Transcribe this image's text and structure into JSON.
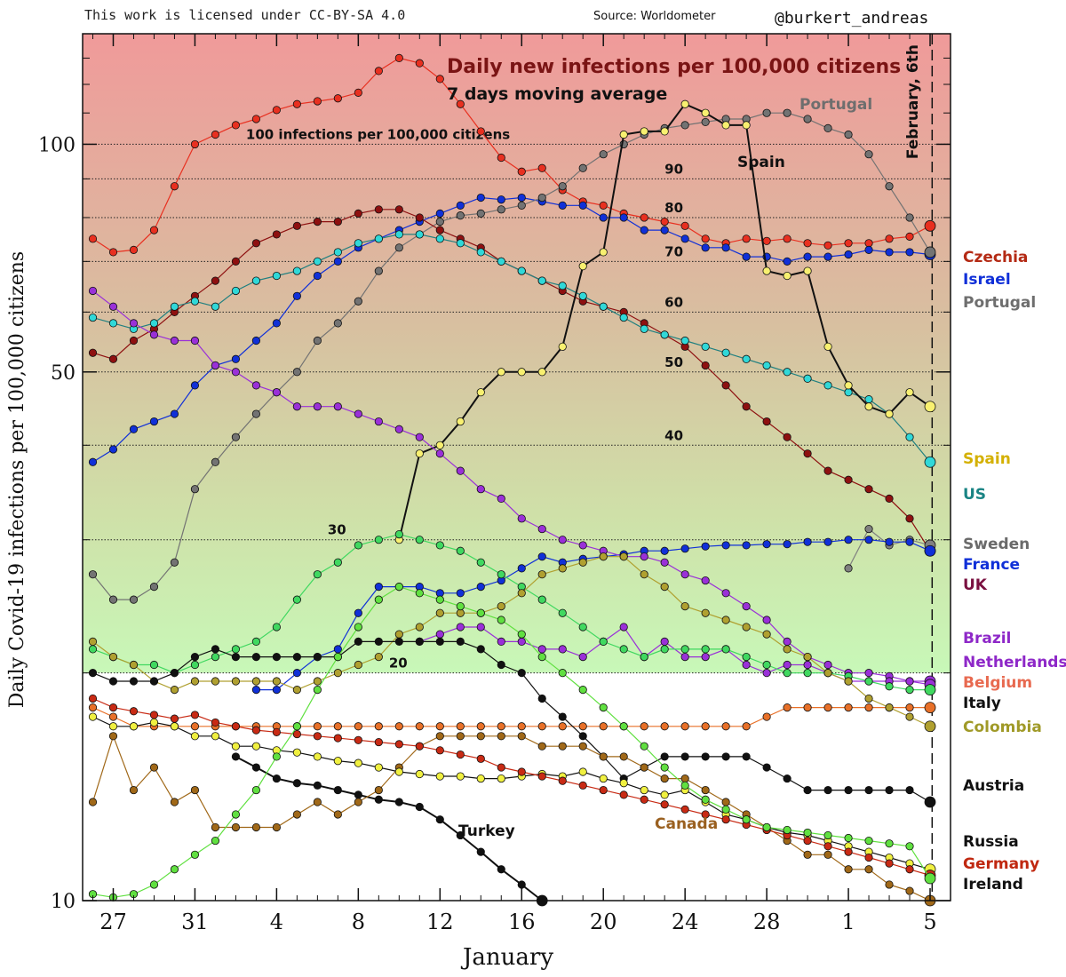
{
  "chart_data": {
    "type": "line",
    "title": "Daily new infections per 100,000 citizens",
    "subtitle": "7 days moving average",
    "license": "This work is licensed under CC-BY-SA 4.0",
    "source": "Source:  Worldometer",
    "author": "@burkert_andreas",
    "ylabel": "Daily Covid-19 infections per 100,000 citizens",
    "xlabel": "January",
    "yscale": "log",
    "ylim": [
      10,
      140
    ],
    "xlim": [
      -0.5,
      42
    ],
    "yticks": [
      {
        "v": 100,
        "label": "100"
      },
      {
        "v": 50,
        "label": "50"
      },
      {
        "v": 10,
        "label": "10"
      }
    ],
    "xticks": [
      {
        "d": 1,
        "label": "27"
      },
      {
        "d": 5,
        "label": "31"
      },
      {
        "d": 9,
        "label": "4"
      },
      {
        "d": 13,
        "label": "8"
      },
      {
        "d": 17,
        "label": "12"
      },
      {
        "d": 21,
        "label": "16"
      },
      {
        "d": 25,
        "label": "20"
      },
      {
        "d": 29,
        "label": "24"
      },
      {
        "d": 33,
        "label": "28"
      },
      {
        "d": 37,
        "label": "1"
      },
      {
        "d": 41,
        "label": "5"
      }
    ],
    "reference_lines": [
      {
        "v": 100,
        "label": "100 infections per 100,000 citizens",
        "d": 7.5
      },
      {
        "v": 90,
        "label": "90",
        "d": 28
      },
      {
        "v": 80,
        "label": "80",
        "d": 28
      },
      {
        "v": 70,
        "label": "70",
        "d": 28
      },
      {
        "v": 60,
        "label": "60",
        "d": 28
      },
      {
        "v": 50,
        "label": "50",
        "d": 28
      },
      {
        "v": 40,
        "label": "40",
        "d": 28
      },
      {
        "v": 30,
        "label": "30",
        "d": 11.5
      },
      {
        "v": 20,
        "label": "20",
        "d": 14.5
      }
    ],
    "marker_date": {
      "d": 41.1,
      "label": "February, 6th"
    },
    "series": [
      {
        "name": "Czechia",
        "color": "#e83020",
        "label_color": "#b42a14",
        "start": 0,
        "values": [
          75,
          72,
          72.5,
          77,
          88,
          100,
          103,
          106,
          108,
          111,
          113,
          114,
          115,
          117,
          125,
          130,
          128,
          122,
          113,
          104,
          96,
          92,
          93,
          87,
          84,
          83,
          81,
          80,
          79,
          78,
          75,
          74,
          75,
          74.5,
          75,
          74,
          73.5,
          74,
          74,
          75,
          75.5,
          78
        ]
      },
      {
        "name": "Israel",
        "color": "#1030d8",
        "label_color": "#1030d8",
        "start": 0,
        "values": [
          38,
          39.5,
          42,
          43,
          44,
          48,
          51,
          52,
          55,
          58,
          63,
          67,
          70,
          73,
          75,
          77,
          79,
          81,
          83,
          85,
          84.5,
          85,
          84,
          83,
          83,
          80,
          80,
          77,
          77,
          75,
          73,
          73,
          71,
          71,
          70,
          71,
          71,
          71.5,
          72.5,
          72,
          72,
          71.5
        ]
      },
      {
        "name": "Portugal",
        "color": "#737373",
        "label_color": "#6e6e6e",
        "start": 0,
        "values": [
          27,
          25,
          25,
          26,
          28,
          35,
          38,
          41,
          44,
          47,
          50,
          55,
          58,
          62,
          68,
          73,
          76,
          79,
          80.5,
          81,
          82,
          83,
          85,
          88,
          93,
          97,
          100,
          103,
          105,
          106,
          107,
          108,
          108,
          110,
          110,
          108,
          105,
          103,
          97,
          88,
          80,
          72
        ]
      },
      {
        "name": "UK",
        "color": "#8e1010",
        "label_color": "#7a1040",
        "start": 0,
        "values": [
          53,
          52,
          55,
          57,
          60,
          63,
          66,
          70,
          74,
          76,
          78,
          79,
          79,
          81,
          82,
          82,
          80,
          77,
          75,
          73,
          70,
          68,
          66,
          64,
          62,
          61,
          60,
          58,
          56,
          54,
          51,
          48,
          45,
          43,
          41,
          39,
          37,
          36,
          35,
          34,
          32,
          29
        ]
      },
      {
        "name": "US",
        "color": "#30d8d8",
        "label_color": "#1a8484",
        "start": 0,
        "values": [
          59,
          58,
          57,
          58,
          61,
          62,
          61,
          64,
          66,
          67,
          68,
          70,
          72,
          74,
          75,
          76,
          76,
          75,
          74,
          72,
          70,
          68,
          66,
          65,
          63,
          61,
          59,
          57,
          56,
          55,
          54,
          53,
          52,
          51,
          50,
          49,
          48,
          47,
          46,
          44,
          41,
          38
        ]
      },
      {
        "name": "Spain",
        "color": "#f8f070",
        "label_color": "#d4b000",
        "start": 0,
        "values": [
          null,
          null,
          null,
          null,
          null,
          null,
          null,
          null,
          null,
          null,
          null,
          null,
          null,
          null,
          null,
          30,
          39,
          40,
          43,
          47,
          50,
          50,
          50,
          54,
          69,
          72,
          103,
          104,
          104,
          113,
          110,
          106,
          106,
          68,
          67,
          68,
          54,
          48,
          45,
          44,
          47,
          45
        ]
      },
      {
        "name": "Sweden",
        "color": "#808080",
        "label_color": "#6a6a6a",
        "start": 0,
        "values": [
          null,
          null,
          null,
          null,
          null,
          null,
          null,
          null,
          null,
          null,
          null,
          null,
          null,
          null,
          null,
          null,
          null,
          null,
          null,
          null,
          null,
          null,
          null,
          null,
          null,
          null,
          null,
          null,
          null,
          null,
          null,
          null,
          null,
          null,
          null,
          null,
          null,
          27.5,
          31,
          29.5,
          30,
          29.5
        ]
      },
      {
        "name": "France",
        "color": "#1030d8",
        "label_color": "#1030d8",
        "start": 0,
        "values": [
          null,
          null,
          null,
          null,
          null,
          null,
          null,
          null,
          19,
          19,
          20,
          21,
          21.5,
          24,
          26,
          26,
          26,
          25.5,
          25.5,
          26,
          26.5,
          27.5,
          28.5,
          28,
          28.3,
          28.5,
          28.7,
          29,
          29,
          29.2,
          29.4,
          29.5,
          29.5,
          29.6,
          29.6,
          29.8,
          29.8,
          30,
          30,
          29.8,
          29.8,
          29
        ]
      },
      {
        "name": "Brazil",
        "color": "#9a30d8",
        "label_color": "#8e28c8",
        "start": 0,
        "values": [
          64,
          61,
          58,
          56,
          55,
          55,
          51,
          50,
          48,
          47,
          45,
          45,
          45,
          44,
          43,
          42,
          41,
          39,
          37,
          35,
          34,
          32,
          31,
          30,
          29.5,
          29,
          28.5,
          28.5,
          28,
          27,
          26.5,
          25.5,
          24.5,
          23.5,
          22,
          21,
          20.5,
          20,
          20,
          19.8,
          19.5,
          19.5
        ]
      },
      {
        "name": "Netherlands",
        "color": "#9a30d8",
        "label_color": "#8e28c8",
        "start": 0,
        "values": [
          null,
          null,
          null,
          null,
          null,
          null,
          null,
          null,
          null,
          null,
          null,
          null,
          null,
          null,
          null,
          null,
          22,
          22.5,
          23,
          23,
          22,
          22,
          21.5,
          21.5,
          21,
          22,
          23,
          21,
          22,
          21,
          21,
          21.5,
          20.5,
          20,
          20.5,
          20.5,
          20,
          19.5,
          19.5,
          19.5,
          19.5,
          19.3
        ]
      },
      {
        "name": "Belgium",
        "color": "#e87028",
        "label_color": "#e86a50",
        "start": 0,
        "values": [
          18,
          17.5,
          17,
          17,
          17,
          17,
          17,
          17,
          17,
          17,
          17,
          17,
          17,
          17,
          17,
          17,
          17,
          17,
          17,
          17,
          17,
          17,
          17,
          17,
          17,
          17,
          17,
          17,
          17,
          17,
          17,
          17,
          17,
          17.5,
          18,
          18,
          18,
          18,
          18,
          18,
          18,
          18
        ]
      },
      {
        "name": "Italy",
        "color": "#40d860",
        "label_color": "#111111",
        "start": 0,
        "values": [
          21.5,
          21,
          20.5,
          20.5,
          20,
          20.5,
          21,
          21.5,
          22,
          23,
          25,
          27,
          28,
          29.5,
          30,
          30.5,
          30,
          29.5,
          29,
          28,
          27,
          26,
          25,
          24,
          23,
          22,
          21.5,
          21,
          21.5,
          21.5,
          21.5,
          21.5,
          21,
          20.5,
          20,
          20,
          20,
          19.8,
          19.5,
          19.2,
          19,
          19
        ]
      },
      {
        "name": "Colombia",
        "color": "#b0a030",
        "label_color": "#a09a28",
        "start": 0,
        "values": [
          22,
          21,
          20.5,
          19.5,
          19,
          19.5,
          19.5,
          19.5,
          19.5,
          19.5,
          19,
          19.5,
          20,
          20.5,
          21,
          22.5,
          23,
          24,
          24,
          24,
          24.5,
          25.5,
          27,
          27.5,
          28,
          28.5,
          28.5,
          27,
          26,
          24.5,
          24,
          23.5,
          23,
          22.5,
          21.5,
          21,
          20,
          19.5,
          18.5,
          18,
          17.5,
          17
        ]
      },
      {
        "name": "Austria",
        "color": "#111111",
        "label_color": "#111111",
        "start": 0,
        "values": [
          20,
          19.5,
          19.5,
          19.5,
          20,
          21,
          21.5,
          21,
          21,
          21,
          21,
          21,
          21,
          22,
          22,
          22,
          22,
          22,
          22,
          21.5,
          20.5,
          20,
          18.5,
          17.5,
          16.5,
          15.5,
          14.5,
          15,
          15.5,
          15.5,
          15.5,
          15.5,
          15.5,
          15,
          14.5,
          14,
          14,
          14,
          14,
          14,
          14,
          13.5
        ]
      },
      {
        "name": "Turkey",
        "color": "#111111",
        "label_color": "#111111",
        "start": 0,
        "values": [
          null,
          null,
          null,
          null,
          null,
          null,
          null,
          15.5,
          15,
          14.5,
          14.3,
          14.2,
          14,
          13.8,
          13.6,
          13.5,
          13.3,
          12.8,
          12.2,
          11.6,
          11,
          10.5,
          10,
          null,
          null,
          null,
          null,
          null,
          null,
          null,
          null,
          null,
          null,
          null,
          null,
          null,
          null,
          null,
          null,
          null,
          null,
          null
        ]
      },
      {
        "name": "Canada",
        "color": "#a06818",
        "label_color": "#9a6020",
        "start": 0,
        "values": [
          13.5,
          16.5,
          14,
          15,
          13.5,
          14,
          12.5,
          12.5,
          12.5,
          12.5,
          13,
          13.5,
          13,
          13.5,
          14,
          15,
          16,
          16.5,
          16.5,
          16.5,
          16.5,
          16.5,
          16,
          16,
          16,
          15.5,
          15.5,
          15,
          14.5,
          14.5,
          14,
          13.5,
          13,
          12.5,
          12,
          11.5,
          11.5,
          11,
          11,
          10.5,
          10.3,
          10
        ]
      },
      {
        "name": "Russia",
        "color": "#f0f040",
        "label_color": "#111111",
        "start": 0,
        "values": [
          17.5,
          17,
          17,
          17.2,
          17,
          16.5,
          16.5,
          16,
          16,
          15.8,
          15.7,
          15.5,
          15.3,
          15.2,
          15,
          14.8,
          14.7,
          14.6,
          14.6,
          14.5,
          14.5,
          14.6,
          14.7,
          14.6,
          14.8,
          14.5,
          14.3,
          14,
          13.8,
          14,
          13.5,
          13,
          12.8,
          12.5,
          12.3,
          12.2,
          12,
          11.8,
          11.6,
          11.4,
          11.2,
          11
        ]
      },
      {
        "name": "Germany",
        "color": "#c82a14",
        "label_color": "#c02810",
        "start": 0,
        "values": [
          18.5,
          18,
          17.8,
          17.6,
          17.4,
          17.6,
          17.2,
          17,
          16.8,
          16.7,
          16.6,
          16.5,
          16.4,
          16.3,
          16.2,
          16.1,
          16,
          15.8,
          15.6,
          15.4,
          15,
          14.8,
          14.6,
          14.4,
          14.2,
          14,
          13.8,
          13.6,
          13.4,
          13.2,
          13,
          12.8,
          12.6,
          12.4,
          12.2,
          12,
          11.8,
          11.6,
          11.4,
          11.2,
          11,
          10.8
        ]
      },
      {
        "name": "Ireland",
        "color": "#60e040",
        "label_color": "#111111",
        "start": 0,
        "values": [
          10.2,
          10.1,
          10.2,
          10.5,
          11,
          11.5,
          12,
          13,
          14,
          15.5,
          17,
          19,
          21,
          23,
          25,
          26,
          25.5,
          25,
          24.5,
          24,
          23.5,
          22.5,
          21,
          20,
          19,
          18,
          17,
          16,
          15,
          14.2,
          13.6,
          13.2,
          12.8,
          12.5,
          12.4,
          12.3,
          12.2,
          12.1,
          12,
          11.9,
          11.8,
          10.7
        ]
      }
    ]
  }
}
